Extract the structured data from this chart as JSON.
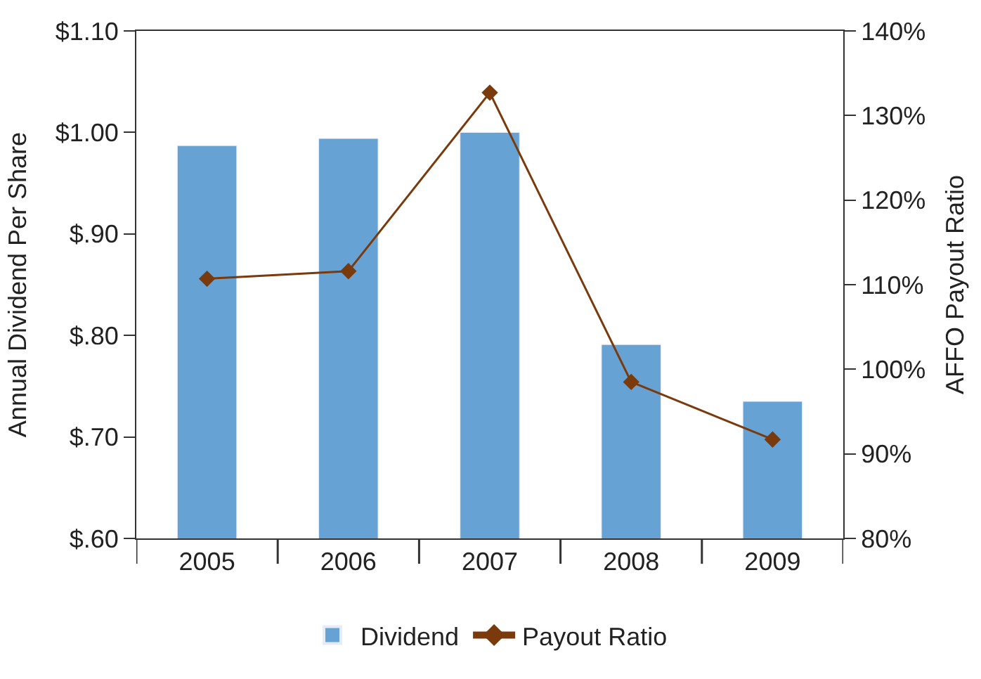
{
  "chart_data": {
    "type": "bar",
    "categories": [
      "2005",
      "2006",
      "2007",
      "2008",
      "2009"
    ],
    "ylabel": "Annual Dividend Per Share",
    "y2label": "AFFO Payout Ratio",
    "series": [
      {
        "name": "Dividend",
        "color": "#66a3d4",
        "values": [
          0.987,
          0.994,
          1.0,
          0.791,
          0.735
        ]
      },
      {
        "name": "Payout Ratio",
        "type": "line",
        "axis": "y2",
        "color": "#7a3a0c",
        "marker": "diamond",
        "values": [
          110.7,
          111.6,
          132.7,
          98.5,
          91.7
        ]
      }
    ],
    "ylim": [
      0.6,
      1.1
    ],
    "yticks": [
      {
        "value": 0.6,
        "label": "$.60"
      },
      {
        "value": 0.7,
        "label": "$.70"
      },
      {
        "value": 0.8,
        "label": "$.80"
      },
      {
        "value": 0.9,
        "label": "$.90"
      },
      {
        "value": 1.0,
        "label": "$1.00"
      },
      {
        "value": 1.1,
        "label": "$1.10"
      }
    ],
    "y2lim": [
      80,
      140
    ],
    "y2ticks": [
      {
        "value": 80,
        "label": "80%"
      },
      {
        "value": 90,
        "label": "90%"
      },
      {
        "value": 100,
        "label": "100%"
      },
      {
        "value": 110,
        "label": "110%"
      },
      {
        "value": 120,
        "label": "120%"
      },
      {
        "value": 130,
        "label": "130%"
      },
      {
        "value": 140,
        "label": "140%"
      }
    ],
    "legend": "bottom"
  }
}
